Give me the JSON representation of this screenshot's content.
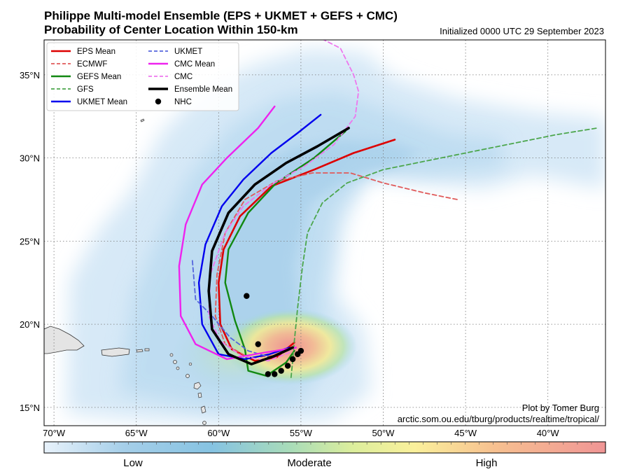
{
  "header": {
    "title_line1": "Philippe Multi-model Ensemble (EPS + UKMET + GEFS + CMC)",
    "title_line2": "Probability of Center Location Within 150-km",
    "initialized": "Initialized 0000 UTC 29 September 2023"
  },
  "credit": {
    "line1": "Plot by Tomer Burg",
    "line2": "arctic.som.ou.edu/tburg/products/realtime/tropical/"
  },
  "colorbar": {
    "labels": [
      "Low",
      "Moderate",
      "High"
    ],
    "colors": [
      "#e8f2fb",
      "#a6cfe9",
      "#7fbfe0",
      "#a8dcb5",
      "#e0ef9a",
      "#faf19a",
      "#f7c08e",
      "#f09a9a"
    ]
  },
  "axes": {
    "lon_labels": [
      "70°W",
      "65°W",
      "60°W",
      "55°W",
      "50°W",
      "45°W",
      "40°W"
    ],
    "lat_labels": [
      "35°N",
      "30°N",
      "25°N",
      "20°N",
      "15°N"
    ],
    "lon_values": [
      -70,
      -65,
      -60,
      -55,
      -50,
      -45,
      -40
    ],
    "lat_values": [
      35,
      30,
      25,
      20,
      15
    ],
    "lon_range": [
      -70.6,
      -36.5
    ],
    "lat_range": [
      13.9,
      37.1
    ]
  },
  "legend": {
    "placement": "top-left",
    "entries": [
      {
        "label": "EPS Mean",
        "color": "#dd0000",
        "style": "solid"
      },
      {
        "label": "ECMWF",
        "color": "#e05a5a",
        "style": "dashed"
      },
      {
        "label": "GEFS Mean",
        "color": "#118811",
        "style": "solid"
      },
      {
        "label": "GFS",
        "color": "#4ca64c",
        "style": "dashed"
      },
      {
        "label": "UKMET Mean",
        "color": "#0000ee",
        "style": "solid"
      },
      {
        "label": "UKMET",
        "color": "#5566dd",
        "style": "dashed"
      },
      {
        "label": "CMC Mean",
        "color": "#ee22ee",
        "style": "solid"
      },
      {
        "label": "CMC",
        "color": "#ee77ee",
        "style": "dashed"
      },
      {
        "label": "Ensemble Mean",
        "color": "#000000",
        "style": "solid"
      },
      {
        "label": "NHC",
        "color": "#000000",
        "style": "dot"
      }
    ]
  },
  "tracks": [
    {
      "name": "EPS Mean",
      "color": "#dd0000",
      "width": 2.6,
      "dash": "",
      "points": [
        [
          -55.4,
          18.9
        ],
        [
          -56.5,
          18.0
        ],
        [
          -57.8,
          17.8
        ],
        [
          -59.2,
          18.5
        ],
        [
          -59.9,
          20.0
        ],
        [
          -60.0,
          22.5
        ],
        [
          -59.7,
          24.5
        ],
        [
          -58.7,
          26.5
        ],
        [
          -56.8,
          28.3
        ],
        [
          -54.2,
          29.3
        ],
        [
          -51.8,
          30.3
        ],
        [
          -49.3,
          31.1
        ]
      ]
    },
    {
      "name": "ECMWF",
      "color": "#e05a5a",
      "width": 1.8,
      "dash": "6,4",
      "points": [
        [
          -55.6,
          18.6
        ],
        [
          -56.7,
          18.1
        ],
        [
          -58.2,
          18.0
        ],
        [
          -59.6,
          18.8
        ],
        [
          -60.2,
          20.5
        ],
        [
          -60.1,
          23.0
        ],
        [
          -59.6,
          25.5
        ],
        [
          -58.4,
          27.5
        ],
        [
          -56.5,
          28.6
        ],
        [
          -54.3,
          29.1
        ],
        [
          -52.0,
          29.1
        ],
        [
          -50.0,
          28.5
        ],
        [
          -47.5,
          27.9
        ],
        [
          -45.5,
          27.5
        ]
      ]
    },
    {
      "name": "GEFS Mean",
      "color": "#118811",
      "width": 2.4,
      "dash": "",
      "points": [
        [
          -55.4,
          18.4
        ],
        [
          -55.9,
          17.7
        ],
        [
          -57.1,
          16.9
        ],
        [
          -58.2,
          17.2
        ],
        [
          -58.4,
          18.5
        ],
        [
          -59.0,
          20.2
        ],
        [
          -59.6,
          22.5
        ],
        [
          -59.4,
          24.5
        ],
        [
          -58.2,
          26.7
        ],
        [
          -56.5,
          28.5
        ],
        [
          -54.2,
          30.0
        ],
        [
          -52.3,
          31.6
        ]
      ]
    },
    {
      "name": "GFS",
      "color": "#4ca64c",
      "width": 1.8,
      "dash": "6,4",
      "points": [
        [
          -55.6,
          16.8
        ],
        [
          -55.5,
          17.8
        ],
        [
          -55.4,
          19.0
        ],
        [
          -55.2,
          21.0
        ],
        [
          -54.9,
          23.5
        ],
        [
          -54.6,
          25.5
        ],
        [
          -53.7,
          27.3
        ],
        [
          -52.2,
          28.5
        ],
        [
          -50.0,
          29.3
        ],
        [
          -47.5,
          29.8
        ],
        [
          -45.0,
          30.3
        ],
        [
          -42.0,
          30.9
        ],
        [
          -39.5,
          31.4
        ],
        [
          -37.0,
          31.8
        ]
      ]
    },
    {
      "name": "UKMET Mean",
      "color": "#0000ee",
      "width": 2.4,
      "dash": "",
      "points": [
        [
          -55.7,
          18.6
        ],
        [
          -56.9,
          18.2
        ],
        [
          -58.4,
          17.9
        ],
        [
          -60.0,
          18.2
        ],
        [
          -61.0,
          20.0
        ],
        [
          -61.2,
          22.5
        ],
        [
          -60.8,
          24.8
        ],
        [
          -59.8,
          27.1
        ],
        [
          -58.5,
          28.7
        ],
        [
          -56.8,
          30.3
        ],
        [
          -55.2,
          31.5
        ],
        [
          -53.8,
          32.6
        ]
      ]
    },
    {
      "name": "UKMET",
      "color": "#5566dd",
      "width": 1.8,
      "dash": "6,4",
      "points": [
        [
          -55.6,
          18.5
        ],
        [
          -56.8,
          18.0
        ],
        [
          -58.2,
          18.4
        ],
        [
          -59.3,
          19.2
        ],
        [
          -60.4,
          20.5
        ],
        [
          -61.4,
          21.5
        ],
        [
          -61.6,
          23.9
        ]
      ]
    },
    {
      "name": "CMC Mean",
      "color": "#ee22ee",
      "width": 2.4,
      "dash": "",
      "points": [
        [
          -55.3,
          18.6
        ],
        [
          -57.2,
          18.3
        ],
        [
          -59.5,
          17.9
        ],
        [
          -61.4,
          18.8
        ],
        [
          -62.3,
          20.5
        ],
        [
          -62.4,
          23.5
        ],
        [
          -62.0,
          26.0
        ],
        [
          -61.0,
          28.4
        ],
        [
          -59.5,
          30.0
        ],
        [
          -57.6,
          31.8
        ],
        [
          -56.6,
          33.1
        ]
      ]
    },
    {
      "name": "CMC",
      "color": "#ee77ee",
      "width": 1.8,
      "dash": "6,4",
      "points": [
        [
          -55.7,
          18.3
        ],
        [
          -57.0,
          17.8
        ],
        [
          -58.6,
          18.1
        ],
        [
          -59.9,
          19.0
        ],
        [
          -60.6,
          20.5
        ],
        [
          -60.5,
          23.0
        ],
        [
          -59.6,
          25.5
        ],
        [
          -58.5,
          27.1
        ],
        [
          -56.8,
          28.4
        ],
        [
          -54.8,
          29.5
        ],
        [
          -53.0,
          30.8
        ],
        [
          -51.7,
          32.5
        ],
        [
          -51.5,
          34.0
        ],
        [
          -51.8,
          35.0
        ],
        [
          -52.6,
          36.6
        ],
        [
          -53.6,
          37.1
        ]
      ]
    },
    {
      "name": "Ensemble Mean",
      "color": "#000000",
      "width": 3.6,
      "dash": "",
      "points": [
        [
          -55.5,
          18.6
        ],
        [
          -56.6,
          18.1
        ],
        [
          -58.0,
          17.6
        ],
        [
          -59.4,
          18.2
        ],
        [
          -60.4,
          19.7
        ],
        [
          -60.6,
          22.0
        ],
        [
          -60.4,
          24.4
        ],
        [
          -59.4,
          26.7
        ],
        [
          -57.8,
          28.4
        ],
        [
          -55.9,
          29.7
        ],
        [
          -54.0,
          30.7
        ],
        [
          -52.1,
          31.8
        ]
      ]
    }
  ],
  "nhc_points": [
    [
      -57.0,
      17.0
    ],
    [
      -56.6,
      17.0
    ],
    [
      -56.2,
      17.2
    ],
    [
      -55.8,
      17.5
    ],
    [
      -55.5,
      17.9
    ],
    [
      -55.2,
      18.2
    ],
    [
      -55.0,
      18.4
    ],
    [
      -57.6,
      18.8
    ],
    [
      -58.3,
      21.7
    ]
  ]
}
